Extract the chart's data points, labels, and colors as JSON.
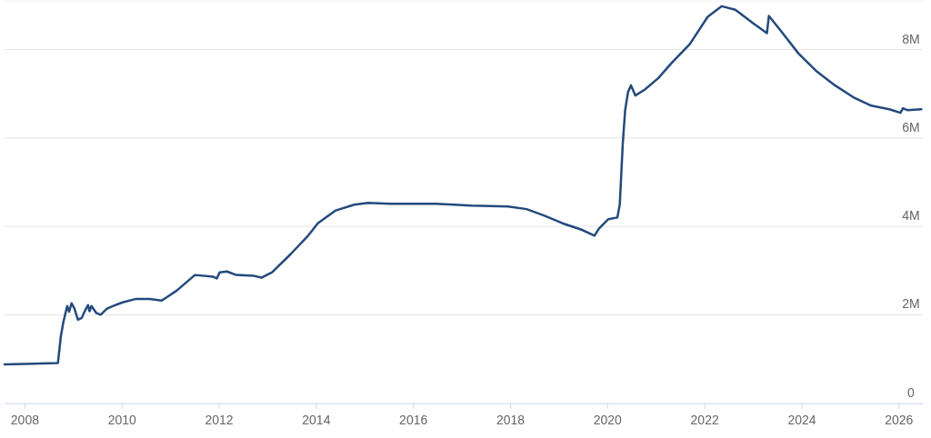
{
  "chart_data": {
    "type": "line",
    "xlim": [
      2007.59,
      2026.5
    ],
    "ylim": [
      0,
      9.1
    ],
    "xticks": [
      2008,
      2010,
      2012,
      2014,
      2016,
      2018,
      2020,
      2022,
      2024,
      2026
    ],
    "yticks": [
      0,
      {
        "value": 2,
        "label": "2M"
      },
      {
        "value": 4,
        "label": "4M"
      },
      {
        "value": 6,
        "label": "6M"
      },
      {
        "value": 8,
        "label": "8M"
      }
    ],
    "grid": "y",
    "series": [
      {
        "color": "#234a7d",
        "x": [
          2007.59,
          2008.0,
          2008.69,
          2008.75,
          2008.8,
          2008.88,
          2008.92,
          2008.97,
          2009.03,
          2009.1,
          2009.18,
          2009.25,
          2009.31,
          2009.34,
          2009.38,
          2009.48,
          2009.57,
          2009.7,
          2009.83,
          2010.02,
          2010.3,
          2010.58,
          2010.82,
          2010.92,
          2011.14,
          2011.51,
          2011.89,
          2011.96,
          2012.02,
          2012.17,
          2012.36,
          2012.73,
          2012.88,
          2013.1,
          2013.48,
          2013.85,
          2014.04,
          2014.41,
          2014.79,
          2015.07,
          2015.53,
          2016.47,
          2017.21,
          2017.96,
          2018.34,
          2018.71,
          2019.08,
          2019.46,
          2019.74,
          2019.83,
          2020.02,
          2020.21,
          2020.26,
          2020.32,
          2020.37,
          2020.43,
          2020.49,
          2020.58,
          2020.77,
          2021.05,
          2021.33,
          2021.7,
          2022.07,
          2022.36,
          2022.64,
          2023.01,
          2023.29,
          2023.33,
          2023.57,
          2023.94,
          2024.32,
          2024.69,
          2025.07,
          2025.44,
          2025.81,
          2026.04,
          2026.09,
          2026.18,
          2026.47
        ],
        "values": [
          0.88,
          0.89,
          0.91,
          1.52,
          1.83,
          2.2,
          2.07,
          2.26,
          2.14,
          1.89,
          1.93,
          2.1,
          2.22,
          2.08,
          2.2,
          2.04,
          2.0,
          2.14,
          2.2,
          2.28,
          2.36,
          2.36,
          2.32,
          2.39,
          2.55,
          2.9,
          2.86,
          2.82,
          2.96,
          2.98,
          2.9,
          2.88,
          2.84,
          2.96,
          3.37,
          3.8,
          4.07,
          4.36,
          4.49,
          4.53,
          4.51,
          4.51,
          4.47,
          4.45,
          4.39,
          4.24,
          4.07,
          3.93,
          3.79,
          3.95,
          4.16,
          4.2,
          4.5,
          5.85,
          6.63,
          7.04,
          7.19,
          6.96,
          7.09,
          7.35,
          7.7,
          8.12,
          8.74,
          8.98,
          8.9,
          8.59,
          8.37,
          8.76,
          8.43,
          7.91,
          7.5,
          7.19,
          6.92,
          6.73,
          6.65,
          6.57,
          6.67,
          6.63,
          6.65
        ]
      }
    ]
  }
}
